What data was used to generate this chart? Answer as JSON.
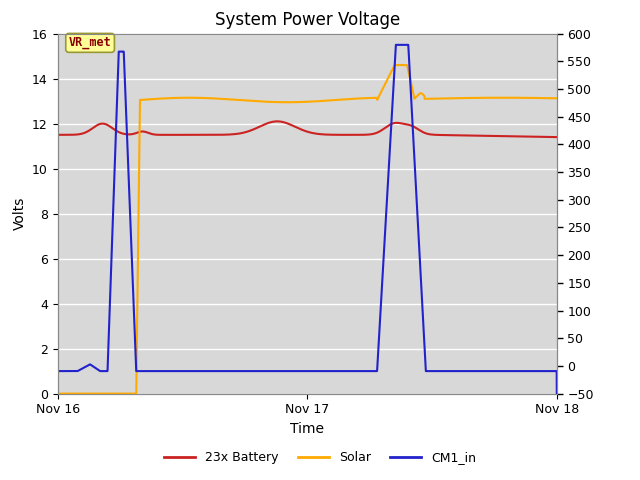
{
  "title": "System Power Voltage",
  "xlabel": "Time",
  "ylabel_left": "Volts",
  "ylim_left": [
    0,
    16
  ],
  "ylim_right": [
    -50,
    600
  ],
  "plot_bg": "#d8d8d8",
  "fig_bg": "#ffffff",
  "grid_color": "#ffffff",
  "annotation_text": "VR_met",
  "annotation_color": "#880000",
  "annotation_bg": "#ffff99",
  "annotation_border": "#999933",
  "series_battery_color": "#cc2222",
  "series_solar_color": "#ffaa00",
  "series_cm1_color": "#2222cc",
  "linewidth": 1.5,
  "xtick_labels": [
    "Nov 16",
    "Nov 17",
    "Nov 18"
  ],
  "xtick_positions": [
    0.0,
    1.0,
    2.0
  ],
  "right_yticks": [
    600,
    550,
    500,
    450,
    400,
    350,
    300,
    250,
    200,
    150,
    100,
    50,
    0,
    -50
  ],
  "left_yticks": [
    0,
    2,
    4,
    6,
    8,
    10,
    12,
    14,
    16
  ]
}
